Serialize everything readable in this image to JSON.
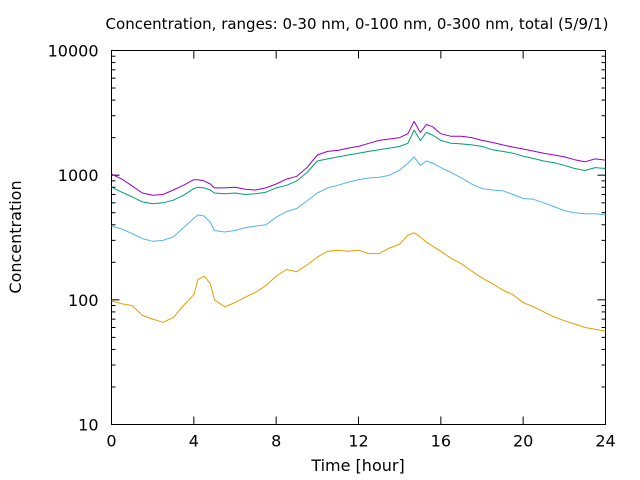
{
  "chart_data": {
    "type": "line",
    "title": "Concentration, ranges: 0-30 nm, 0-100 nm, 0-300 nm, total (5/9/1)",
    "xlabel": "Time [hour]",
    "ylabel": "Concentration",
    "xlim": [
      0,
      24
    ],
    "ylim": [
      10,
      10000
    ],
    "yscale": "log",
    "grid": false,
    "legend": "none",
    "x_ticks": [
      0,
      4,
      8,
      12,
      16,
      20,
      24
    ],
    "x_tick_labels": [
      "0",
      "4",
      "8",
      "12",
      "16",
      "20",
      "24"
    ],
    "y_ticks": [
      10,
      100,
      1000,
      10000
    ],
    "y_tick_labels": [
      "10",
      "100",
      "1000",
      "10000"
    ],
    "x": [
      0,
      0.5,
      1,
      1.5,
      2,
      2.5,
      3,
      3.5,
      4,
      4.2,
      4.5,
      4.8,
      5,
      5.5,
      6,
      6.5,
      7,
      7.5,
      8,
      8.5,
      9,
      9.5,
      10,
      10.5,
      11,
      11.5,
      12,
      12.5,
      13,
      13.5,
      14,
      14.4,
      14.7,
      15,
      15.3,
      15.6,
      16,
      16.5,
      17,
      17.5,
      18,
      18.5,
      19,
      19.5,
      20,
      20.5,
      21,
      21.5,
      22,
      22.5,
      23,
      23.5,
      24
    ],
    "series": [
      {
        "color": "#e69f00",
        "values": [
          98,
          93,
          90,
          75,
          70,
          66,
          72,
          90,
          110,
          145,
          155,
          135,
          100,
          88,
          95,
          105,
          115,
          130,
          155,
          175,
          168,
          190,
          220,
          245,
          250,
          245,
          250,
          235,
          235,
          260,
          280,
          330,
          345,
          320,
          290,
          270,
          245,
          215,
          195,
          170,
          150,
          135,
          120,
          110,
          95,
          88,
          80,
          73,
          68,
          64,
          60,
          58,
          56
        ]
      },
      {
        "color": "#56b4e9",
        "values": [
          390,
          370,
          340,
          310,
          295,
          300,
          320,
          380,
          450,
          480,
          470,
          420,
          360,
          350,
          360,
          380,
          390,
          400,
          460,
          510,
          540,
          620,
          720,
          790,
          830,
          880,
          920,
          950,
          960,
          1000,
          1100,
          1250,
          1400,
          1200,
          1300,
          1250,
          1150,
          1050,
          950,
          850,
          780,
          760,
          750,
          700,
          650,
          640,
          600,
          560,
          520,
          500,
          490,
          490,
          480
        ]
      },
      {
        "color": "#009e73",
        "values": [
          800,
          730,
          670,
          610,
          590,
          600,
          630,
          690,
          780,
          800,
          790,
          760,
          720,
          710,
          720,
          700,
          710,
          730,
          790,
          830,
          900,
          1050,
          1300,
          1350,
          1400,
          1450,
          1500,
          1550,
          1600,
          1650,
          1700,
          1800,
          2300,
          1900,
          2200,
          2100,
          1900,
          1800,
          1780,
          1750,
          1700,
          1600,
          1550,
          1500,
          1420,
          1360,
          1300,
          1260,
          1200,
          1130,
          1090,
          1150,
          1130
        ]
      },
      {
        "color": "#9400d3",
        "values": [
          1020,
          930,
          820,
          720,
          690,
          700,
          760,
          830,
          920,
          920,
          900,
          850,
          790,
          790,
          800,
          770,
          760,
          790,
          850,
          930,
          980,
          1150,
          1450,
          1550,
          1580,
          1650,
          1700,
          1800,
          1900,
          1950,
          2000,
          2150,
          2700,
          2200,
          2550,
          2450,
          2150,
          2050,
          2050,
          2000,
          1900,
          1830,
          1750,
          1680,
          1620,
          1560,
          1500,
          1450,
          1400,
          1330,
          1280,
          1350,
          1320
        ]
      }
    ]
  }
}
